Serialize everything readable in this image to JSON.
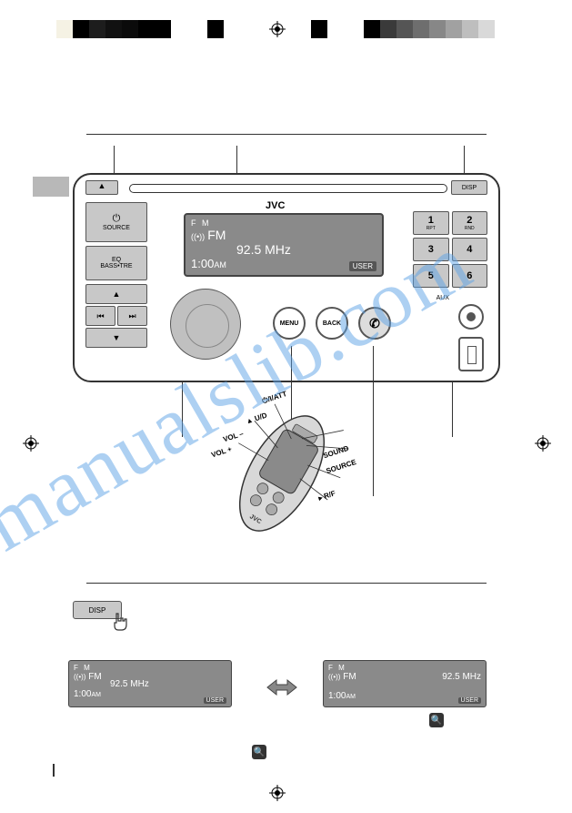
{
  "colorbar": {
    "swatches_left": [
      {
        "w": 18,
        "c": "#f5f2e4"
      },
      {
        "w": 18,
        "c": "#000000"
      },
      {
        "w": 18,
        "c": "#1d1d1d"
      },
      {
        "w": 18,
        "c": "#111111"
      },
      {
        "w": 18,
        "c": "#0b0b0b"
      },
      {
        "w": 18,
        "c": "#000000"
      },
      {
        "w": 18,
        "c": "#000000"
      },
      {
        "w": 40,
        "c": "#ffffff"
      },
      {
        "w": 18,
        "c": "#000000"
      }
    ],
    "swatches_right": [
      {
        "w": 18,
        "c": "#000000"
      },
      {
        "w": 40,
        "c": "#ffffff"
      },
      {
        "w": 18,
        "c": "#010101"
      },
      {
        "w": 18,
        "c": "#3a3a3a"
      },
      {
        "w": 18,
        "c": "#555555"
      },
      {
        "w": 18,
        "c": "#6e6e6e"
      },
      {
        "w": 18,
        "c": "#878787"
      },
      {
        "w": 18,
        "c": "#a1a1a1"
      },
      {
        "w": 18,
        "c": "#bebebe"
      },
      {
        "w": 18,
        "c": "#d9d9d9"
      },
      {
        "w": 18,
        "c": "#ffffff"
      }
    ]
  },
  "watermark": "manualslib.com",
  "unit": {
    "brand": "JVC",
    "eject_glyph": "▲",
    "disp_label": "DISP",
    "source_label": "SOURCE",
    "power_glyph": "⏻",
    "eq_label": "EQ",
    "bass_tre_label": "BASS•TRE",
    "arrows": {
      "up": "▲",
      "down": "▼",
      "prev": "⏮",
      "next": "⏭"
    },
    "menu_label": "MENU",
    "back_label": "BACK",
    "tel_glyph": "✆",
    "aux_label": "AUX",
    "presets": [
      {
        "num": "1",
        "sub": "RPT"
      },
      {
        "num": "2",
        "sub": "RND"
      },
      {
        "num": "3",
        "sub": ""
      },
      {
        "num": "4",
        "sub": ""
      },
      {
        "num": "5",
        "sub": ""
      },
      {
        "num": "6",
        "sub": ""
      }
    ],
    "display": {
      "band_indicator": "F   M",
      "band": "FM",
      "signal_glyph": "((•))",
      "freq": "92.5 MHz",
      "time": "1:00",
      "ampm": "AM",
      "user": "USER"
    }
  },
  "remote": {
    "labels": [
      "⏻/I/ATT",
      "▲ U/D",
      "VOL –",
      "VOL +",
      "SOUND",
      "SOURCE",
      "▸ R/F"
    ],
    "brand": "JVC"
  },
  "bottom": {
    "disp_label": "DISP",
    "left_lcd": {
      "band_indicator": "F   M",
      "band": "FM",
      "freq": "92.5 MHz",
      "time": "1:00",
      "ampm": "AM",
      "user": "USER"
    },
    "right_lcd": {
      "band_indicator": "F   M",
      "band": "FM",
      "freq": "92.5 MHz",
      "time": "1:00",
      "ampm": "AM",
      "user": "USER"
    },
    "mag_glyph": "🔍"
  }
}
